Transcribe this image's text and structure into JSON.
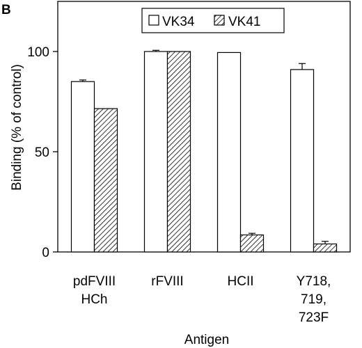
{
  "panel_label": "B",
  "chart_data": {
    "type": "bar",
    "title": "",
    "xlabel": "Antigen",
    "ylabel": "Binding (% of control)",
    "ylim": [
      0,
      125
    ],
    "yticks": [
      0,
      50,
      100
    ],
    "grid": false,
    "legend_position": "top-center",
    "categories": [
      [
        "pdFVIII",
        "HCh"
      ],
      [
        "rFVIII"
      ],
      [
        "HCII"
      ],
      [
        "Y718,",
        "719,",
        "723F"
      ]
    ],
    "series": [
      {
        "name": "VK34",
        "fill": "open",
        "values": [
          85,
          100,
          99.5,
          91
        ],
        "errors": [
          0.8,
          0.6,
          0,
          3
        ]
      },
      {
        "name": "VK41",
        "fill": "hatched",
        "values": [
          71.5,
          100,
          8.5,
          4
        ],
        "errors": [
          0,
          0,
          0.8,
          1.3
        ]
      }
    ]
  }
}
